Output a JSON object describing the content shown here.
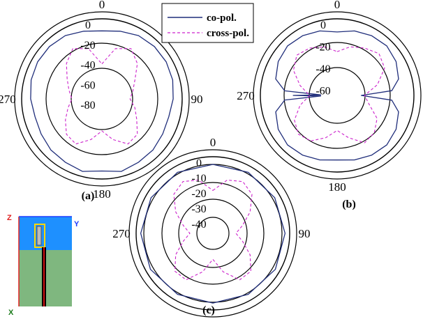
{
  "legend": {
    "co_label": "co-pol.",
    "cross_label": "cross-pol."
  },
  "colors": {
    "co": "#1f2d7a",
    "cross": "#cc22cc",
    "grid": "#000000",
    "inset_sky": "#1e90ff",
    "inset_ground": "#7fb77f",
    "inset_axis_z": "#e02020",
    "inset_axis_y": "#1e3cff",
    "inset_axis_x": "#1a7a1a",
    "inset_feed": "#000000",
    "inset_patch": "#ffd700"
  },
  "inset": {
    "axis_z": "Z",
    "axis_y": "Y",
    "axis_x": "X"
  },
  "chart_data": [
    {
      "type": "polar",
      "caption": "(a)",
      "angle_labels": [
        "0",
        "90",
        "180",
        "270"
      ],
      "r_ticks": [
        "0",
        "-20",
        "-40",
        "-60",
        "-80"
      ],
      "r_min": -80,
      "r_max": 0,
      "series": [
        {
          "name": "co-pol.",
          "angles": [
            0,
            15,
            30,
            45,
            60,
            75,
            90,
            105,
            120,
            135,
            150,
            165,
            180,
            195,
            210,
            225,
            240,
            255,
            270,
            285,
            300,
            315,
            330,
            345
          ],
          "values": [
            -12,
            -10,
            -7,
            -6,
            -6,
            -7,
            -9,
            -11,
            -10,
            -8,
            -7,
            -5,
            -8,
            -5,
            -7,
            -8,
            -10,
            -11,
            -9,
            -7,
            -6,
            -6,
            -7,
            -10
          ]
        },
        {
          "name": "cross-pol.",
          "angles": [
            0,
            15,
            30,
            45,
            60,
            75,
            90,
            105,
            120,
            135,
            150,
            165,
            180,
            195,
            210,
            225,
            240,
            255,
            270,
            285,
            300,
            315,
            330,
            345
          ],
          "values": [
            -45,
            -28,
            -22,
            -30,
            -42,
            -48,
            -52,
            -46,
            -40,
            -30,
            -28,
            -38,
            -48,
            -38,
            -28,
            -30,
            -38,
            -45,
            -50,
            -46,
            -40,
            -30,
            -22,
            -28
          ]
        }
      ]
    },
    {
      "type": "polar",
      "caption": "(b)",
      "angle_labels": [
        "0",
        "90",
        "180",
        "270"
      ],
      "r_ticks": [
        "0",
        "-20",
        "-40",
        "-60"
      ],
      "r_min": -70,
      "r_max": 0,
      "series": [
        {
          "name": "co-pol.",
          "angles": [
            0,
            15,
            30,
            45,
            60,
            75,
            85,
            90,
            95,
            105,
            120,
            135,
            150,
            165,
            180,
            195,
            210,
            225,
            240,
            255,
            265,
            268,
            270,
            272,
            275,
            285,
            300,
            315,
            330,
            345
          ],
          "values": [
            -12,
            -9,
            -7,
            -6,
            -8,
            -12,
            -20,
            -48,
            -20,
            -12,
            -8,
            -6,
            -7,
            -9,
            -11,
            -9,
            -7,
            -6,
            -8,
            -12,
            -22,
            -55,
            -30,
            -55,
            -22,
            -12,
            -8,
            -6,
            -7,
            -9
          ]
        },
        {
          "name": "cross-pol.",
          "angles": [
            0,
            15,
            30,
            45,
            60,
            75,
            90,
            105,
            120,
            135,
            150,
            165,
            180,
            195,
            210,
            225,
            240,
            255,
            270,
            285,
            300,
            315,
            330,
            345
          ],
          "values": [
            -30,
            -24,
            -20,
            -16,
            -20,
            -32,
            -45,
            -40,
            -28,
            -22,
            -20,
            -30,
            -38,
            -30,
            -22,
            -20,
            -25,
            -35,
            -45,
            -35,
            -24,
            -18,
            -20,
            -24
          ]
        }
      ]
    },
    {
      "type": "polar",
      "caption": "(c)",
      "angle_labels": [
        "0",
        "90",
        "180",
        "270"
      ],
      "r_ticks": [
        "0",
        "-10",
        "-20",
        "-30",
        "-40"
      ],
      "r_min": -50,
      "r_max": 0,
      "series": [
        {
          "name": "co-pol.",
          "angles": [
            0,
            30,
            60,
            90,
            120,
            150,
            180,
            210,
            240,
            270,
            300,
            330
          ],
          "values": [
            -5,
            -4,
            -3.5,
            -3,
            -3,
            -4,
            -4.5,
            -4,
            -3,
            -3,
            -3.5,
            -4
          ]
        },
        {
          "name": "cross-pol.",
          "angles": [
            0,
            15,
            30,
            45,
            60,
            75,
            90,
            105,
            120,
            135,
            150,
            165,
            180,
            195,
            210,
            225,
            240,
            255,
            270,
            285,
            300,
            315,
            330,
            345
          ],
          "values": [
            -22,
            -14,
            -11,
            -14,
            -22,
            -30,
            -35,
            -30,
            -22,
            -15,
            -15,
            -24,
            -33,
            -24,
            -15,
            -15,
            -22,
            -30,
            -35,
            -30,
            -22,
            -14,
            -11,
            -14
          ]
        }
      ]
    }
  ]
}
